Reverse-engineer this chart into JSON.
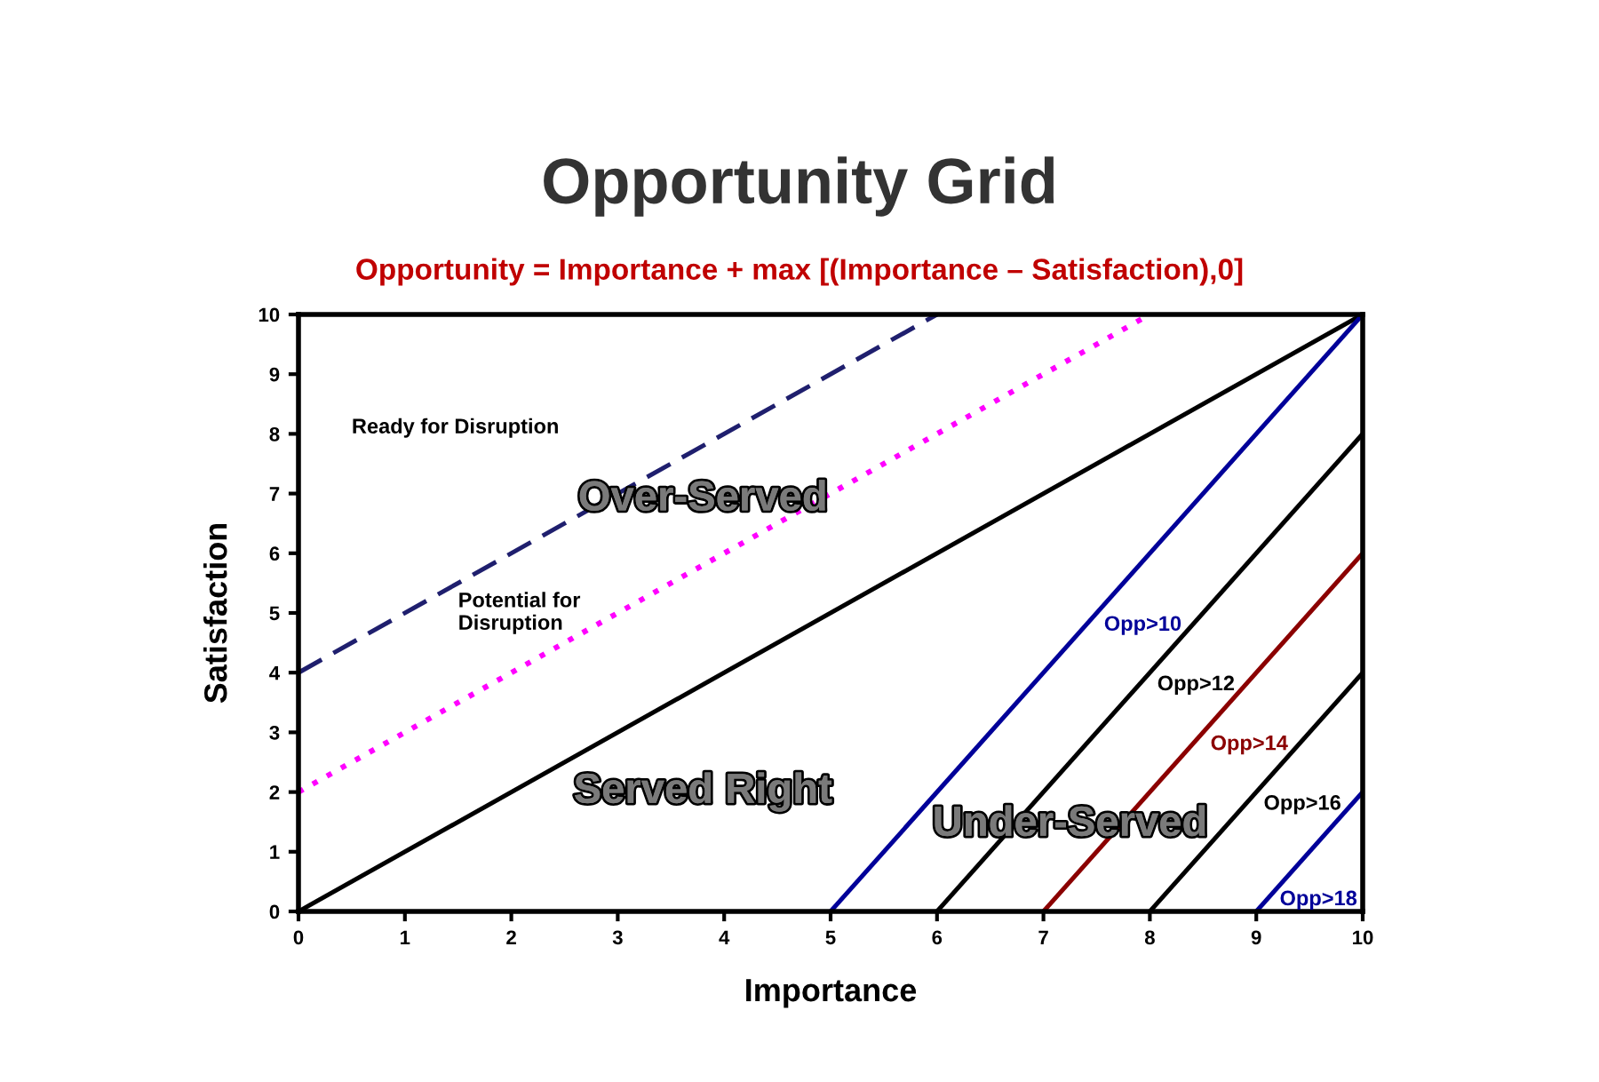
{
  "chart_data": {
    "type": "line",
    "title": "Opportunity Grid",
    "subtitle": "Opportunity = Importance + max [(Importance – Satisfaction),0]",
    "xlabel": "Importance",
    "ylabel": "Satisfaction",
    "xlim": [
      0,
      10
    ],
    "ylim": [
      0,
      10
    ],
    "xticks": [
      0,
      1,
      2,
      3,
      4,
      5,
      6,
      7,
      8,
      9,
      10
    ],
    "yticks": [
      0,
      1,
      2,
      3,
      4,
      5,
      6,
      7,
      8,
      9,
      10
    ],
    "grid": false,
    "legend": false,
    "marker": "none",
    "series": [
      {
        "x": [
          0,
          6
        ],
        "values": [
          4,
          10
        ],
        "color": "#1f1f6e",
        "line_style": "dashed"
      },
      {
        "x": [
          0,
          8
        ],
        "values": [
          2,
          10
        ],
        "color": "#ff00ff",
        "line_style": "dotted"
      },
      {
        "x": [
          0,
          10
        ],
        "values": [
          0,
          10
        ],
        "color": "#000000",
        "line_style": "solid"
      },
      {
        "name": "Opp>10",
        "x": [
          5,
          10
        ],
        "values": [
          0,
          10
        ],
        "color": "#000099",
        "line_style": "solid"
      },
      {
        "name": "Opp>12",
        "x": [
          6,
          10
        ],
        "values": [
          0,
          8
        ],
        "color": "#000000",
        "line_style": "solid"
      },
      {
        "name": "Opp>14",
        "x": [
          7,
          10
        ],
        "values": [
          0,
          6
        ],
        "color": "#8b0000",
        "line_style": "solid"
      },
      {
        "name": "Opp>16",
        "x": [
          8,
          10
        ],
        "values": [
          0,
          4
        ],
        "color": "#000000",
        "line_style": "solid"
      },
      {
        "name": "Opp>18",
        "x": [
          9,
          10
        ],
        "values": [
          0,
          2
        ],
        "color": "#000099",
        "line_style": "solid"
      }
    ],
    "annotations": [
      "Ready for Disruption",
      "Potential for\nDisruption",
      "Over-Served",
      "Served Right",
      "Under-Served"
    ]
  }
}
